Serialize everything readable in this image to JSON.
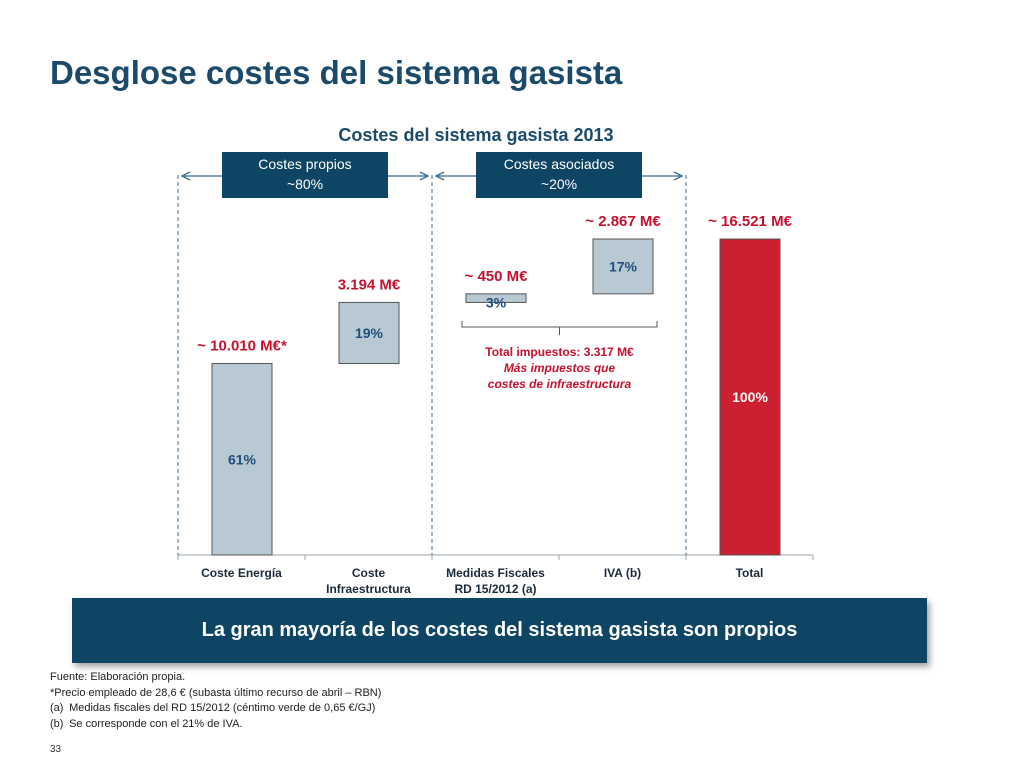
{
  "slide": {
    "title": "Desglose costes del sistema gasista",
    "banner_text": "La gran mayoría de los costes del sistema gasista son propios",
    "source": "Fuente: Elaboración propia.",
    "footnotes": [
      {
        "mark": "",
        "text": "*Precio empleado de 28,6 € (subasta último recurso de abril – RBN)"
      },
      {
        "mark": "(a)",
        "text": "Medidas fiscales del RD 15/2012 (céntimo verde de 0,65 €/GJ)"
      },
      {
        "mark": "(b)",
        "text": "Se corresponde con el 21% de IVA."
      }
    ],
    "page_number": "33"
  },
  "chart_data": {
    "type": "bar",
    "subtype": "waterfall",
    "title": "Costes del sistema gasista 2013",
    "unit": "M€",
    "ylim": [
      0,
      16521
    ],
    "grid": false,
    "categories": [
      "Coste Energía",
      "Coste Infraestructura",
      "Medidas Fiscales RD 15/2012 (a)",
      "IVA (b)",
      "Total"
    ],
    "category_labels": [
      [
        "Coste Energía"
      ],
      [
        "Coste",
        "Infraestructura"
      ],
      [
        "Medidas Fiscales",
        "RD 15/2012 (a)"
      ],
      [
        "IVA (b)"
      ],
      [
        "Total"
      ]
    ],
    "bars": [
      {
        "category": "Coste Energía",
        "base": 0,
        "value": 10010,
        "value_label": "~ 10.010 M€*",
        "percent_label": "61%",
        "color": "#b8c9d4"
      },
      {
        "category": "Coste Infraestructura",
        "base": 10010,
        "value": 3194,
        "value_label": "3.194 M€",
        "percent_label": "19%",
        "color": "#b8c9d4"
      },
      {
        "category": "Medidas Fiscales RD 15/2012 (a)",
        "base": 13204,
        "value": 450,
        "value_label": "~ 450 M€",
        "percent_label": "3%",
        "color": "#b8c9d4"
      },
      {
        "category": "IVA (b)",
        "base": 13654,
        "value": 2867,
        "value_label": "~ 2.867 M€",
        "percent_label": "17%",
        "color": "#b8c9d4"
      },
      {
        "category": "Total",
        "base": 0,
        "value": 16521,
        "value_label": "~ 16.521 M€",
        "percent_label": "100%",
        "color": "#cc1f2f"
      }
    ],
    "groups": [
      {
        "label": "Costes propios",
        "share": "~80%",
        "categories": [
          "Coste Energía",
          "Coste Infraestructura"
        ]
      },
      {
        "label": "Costes asociados",
        "share": "~20%",
        "categories": [
          "Medidas Fiscales RD 15/2012 (a)",
          "IVA (b)"
        ]
      }
    ],
    "tax_annotation": {
      "total": "Total impuestos: 3.317 M€",
      "note_lines": [
        "Más impuestos que",
        "costes de infraestructura"
      ],
      "categories": [
        "Medidas Fiscales RD 15/2012 (a)",
        "IVA (b)"
      ]
    },
    "colors": {
      "title": "#1b4a6b",
      "header_box": "#0e4464",
      "value_label": "#c8102e",
      "percent_label": "#1f4e79",
      "bar_edge": "#555555",
      "divider": "#3b6b8c"
    }
  }
}
